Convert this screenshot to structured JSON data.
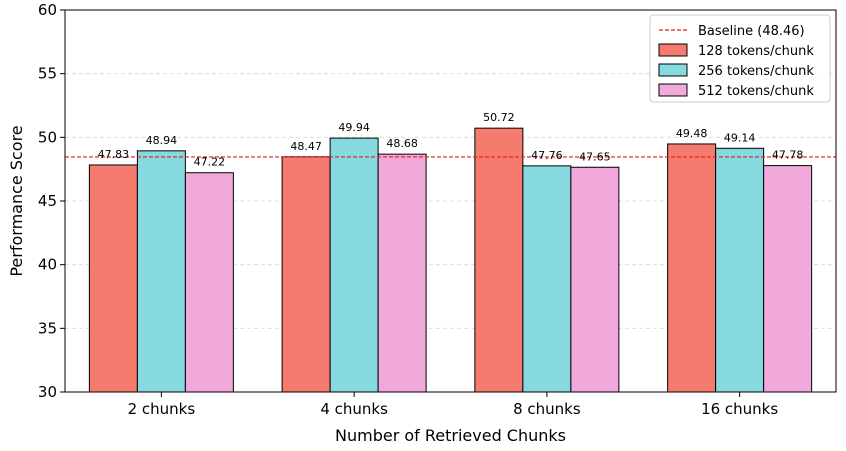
{
  "chart_data": {
    "type": "bar",
    "xlabel": "Number of Retrieved Chunks",
    "ylabel": "Performance Score",
    "categories": [
      "2 chunks",
      "4 chunks",
      "8 chunks",
      "16 chunks"
    ],
    "ylim": [
      30,
      60
    ],
    "yticks": [
      30,
      35,
      40,
      45,
      50,
      55,
      60
    ],
    "grid": "horizontal dashed",
    "legend_position": "top-right",
    "baseline": {
      "label": "Baseline (48.46)",
      "value": 48.46,
      "color": "#e41a1c"
    },
    "series": [
      {
        "name": "128 tokens/chunk",
        "color": "#f47b6e",
        "values": [
          47.83,
          48.47,
          50.72,
          49.48
        ],
        "labels": [
          "47.83",
          "48.47",
          "50.72",
          "49.48"
        ]
      },
      {
        "name": "256 tokens/chunk",
        "color": "#86d9de",
        "values": [
          48.94,
          49.94,
          47.76,
          49.14
        ],
        "labels": [
          "48.94",
          "49.94",
          "47.76",
          "49.14"
        ]
      },
      {
        "name": "512 tokens/chunk",
        "color": "#f1a8da",
        "values": [
          47.22,
          48.68,
          47.65,
          47.78
        ],
        "labels": [
          "47.22",
          "48.68",
          "47.65",
          "47.78"
        ]
      }
    ]
  }
}
